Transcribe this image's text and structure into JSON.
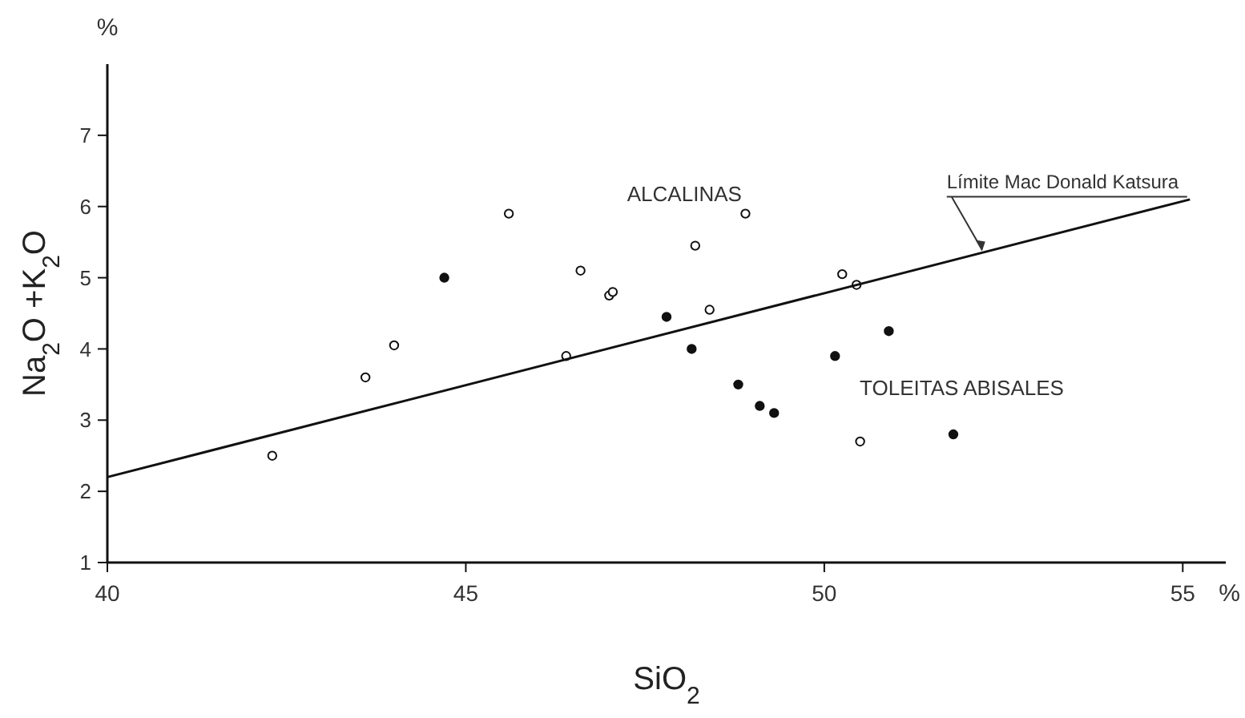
{
  "chart_data": {
    "type": "scatter",
    "xlabel": "SiO$_{2}$",
    "ylabel": "Na$_{2}$O +K$_{2}$O",
    "xlim": [
      40,
      55.6
    ],
    "ylim": [
      1,
      8
    ],
    "xticks": [
      40,
      45,
      50,
      55
    ],
    "yticks": [
      1,
      2,
      3,
      4,
      5,
      6,
      7
    ],
    "grid": false,
    "marker": "circle",
    "series": [
      {
        "color": "#ffffff",
        "x": [
          42.3,
          43.6,
          44.0,
          45.6,
          46.6,
          46.4,
          47.0,
          47.05,
          48.2,
          48.4,
          48.9,
          50.25,
          50.45,
          50.5
        ],
        "values": [
          2.5,
          3.6,
          4.05,
          5.9,
          5.1,
          3.9,
          4.75,
          4.8,
          5.45,
          4.55,
          5.9,
          5.05,
          4.9,
          2.7
        ]
      },
      {
        "color": "#111111",
        "x": [
          44.7,
          47.8,
          48.15,
          48.8,
          49.1,
          49.3,
          50.15,
          50.9,
          51.8
        ],
        "values": [
          5.0,
          4.45,
          4.0,
          3.5,
          3.2,
          3.1,
          3.9,
          4.25,
          2.8
        ]
      },
      {
        "type": "line",
        "color": "#111111",
        "marker": "none",
        "line_style": "solid",
        "x": [
          40,
          55.1
        ],
        "values": [
          2.2,
          6.1
        ]
      }
    ],
    "annotations": [
      "%",
      "%",
      "ALCALINAS",
      "TOLEITAS ABISALES",
      {
        "text": "Límite Mac Donald Katsura",
        "x": 52.2,
        "y": 5.35
      }
    ]
  }
}
